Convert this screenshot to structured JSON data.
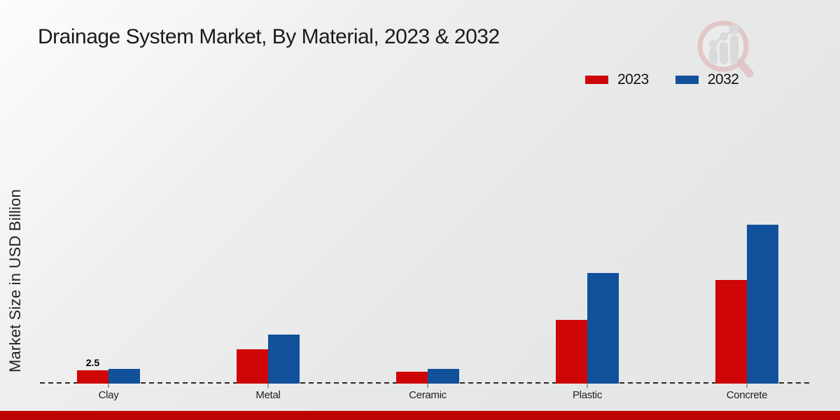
{
  "page": {
    "title": "Drainage System Market, By Material, 2023 & 2032",
    "footer_band_color": "#bf0404",
    "background_color": "#e9eaea"
  },
  "y_axis": {
    "label": "Market Size in USD Billion"
  },
  "legend": {
    "position": "top-right",
    "items": [
      {
        "label": "2023",
        "color": "#ce0606"
      },
      {
        "label": "2032",
        "color": "#11519c"
      }
    ]
  },
  "watermark": {
    "name": "market-research-magnifier-logo"
  },
  "chart_data": {
    "type": "bar",
    "title": "Drainage System Market, By Material, 2023 & 2032",
    "xlabel": "",
    "ylabel": "Market Size in USD Billion",
    "categories": [
      "Clay",
      "Metal",
      "Ceramic",
      "Plastic",
      "Concrete"
    ],
    "series": [
      {
        "name": "2023",
        "color": "#ce0606",
        "values": [
          2.5,
          6.5,
          2.2,
          12.1,
          19.7
        ]
      },
      {
        "name": "2032",
        "color": "#11519c",
        "values": [
          2.8,
          9.3,
          2.8,
          21.0,
          30.2
        ]
      }
    ],
    "annotations": [
      {
        "category": "Clay",
        "series": "2023",
        "text": "2.5"
      }
    ],
    "ylim": [
      0,
      35
    ],
    "grid": false,
    "axis_style": "dashed-baseline-only",
    "legend_position": "top-right"
  }
}
